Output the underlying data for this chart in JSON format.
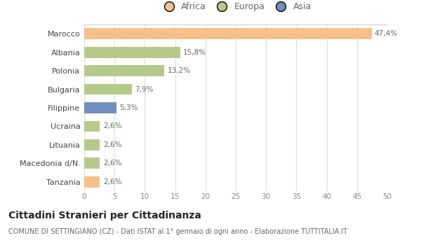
{
  "categories": [
    "Marocco",
    "Albania",
    "Polonia",
    "Bulgaria",
    "Filippine",
    "Ucraina",
    "Lituania",
    "Macedonia d/N.",
    "Tanzania"
  ],
  "values": [
    47.4,
    15.8,
    13.2,
    7.9,
    5.3,
    2.6,
    2.6,
    2.6,
    2.6
  ],
  "labels": [
    "47,4%",
    "15,8%",
    "13,2%",
    "7,9%",
    "5,3%",
    "2,6%",
    "2,6%",
    "2,6%",
    "2,6%"
  ],
  "colors": [
    "#f5c08a",
    "#b5c98a",
    "#b5c98a",
    "#b5c98a",
    "#7090bb",
    "#b5c98a",
    "#b5c98a",
    "#b5c98a",
    "#f5c08a"
  ],
  "legend_items": [
    {
      "label": "Africa",
      "color": "#f5c08a"
    },
    {
      "label": "Europa",
      "color": "#b5c98a"
    },
    {
      "label": "Asia",
      "color": "#7090bb"
    }
  ],
  "title": "Cittadini Stranieri per Cittadinanza",
  "subtitle": "COMUNE DI SETTINGIANO (CZ) - Dati ISTAT al 1° gennaio di ogni anno - Elaborazione TUTTITALIA.IT",
  "xlim": [
    0,
    50
  ],
  "xtick_step": 5,
  "background_color": "#ffffff",
  "grid_color": "#dddddd",
  "bar_height": 0.6
}
